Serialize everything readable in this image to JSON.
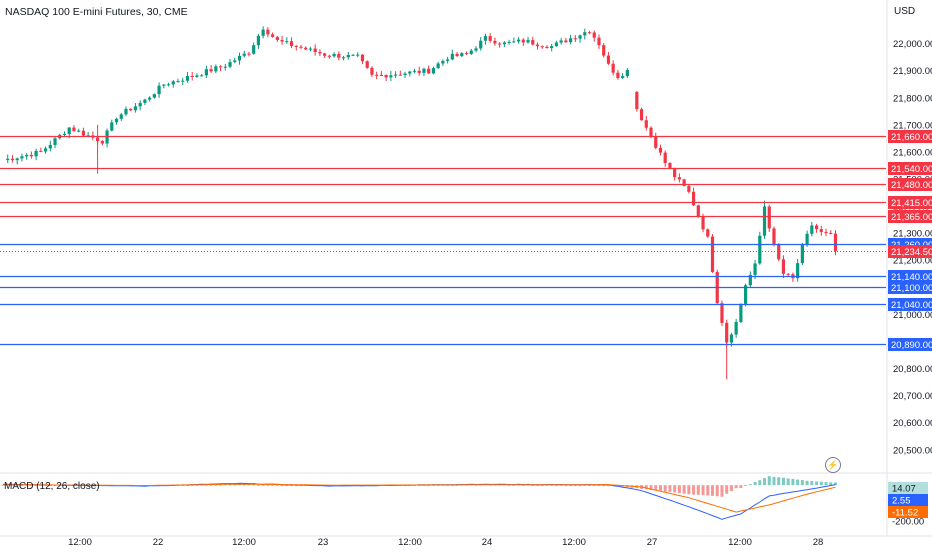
{
  "header": {
    "title": "NASDAQ 100 E-mini Futures, 30, CME",
    "currency": "USD"
  },
  "icons": {
    "alert": "lightning-bolt-icon"
  },
  "colors": {
    "up": "#089981",
    "down": "#f23645",
    "resistance": "#f23645",
    "support": "#2962ff",
    "macd": "#2962ff",
    "signal": "#ff6d00",
    "last": "#f23645"
  },
  "chart_data": [
    {
      "type": "candlestick",
      "title": "NASDAQ 100 E-mini Futures, 30, CME",
      "price_scale": {
        "min": 20430,
        "max": 22100,
        "ticks": [
          "22,000.00",
          "21,900.00",
          "21,800.00",
          "21,700.00",
          "21,600.00",
          "21,500.00",
          "21,400.00",
          "21,300.00",
          "21,200.00",
          "21,100.00",
          "21,000.00",
          "20,900.00",
          "20,800.00",
          "20,700.00",
          "20,600.00",
          "20,500.00"
        ],
        "tick_values": [
          22000,
          21900,
          21800,
          21700,
          21600,
          21500,
          21400,
          21300,
          21200,
          21100,
          21000,
          20900,
          20800,
          20700,
          20600,
          20500
        ]
      },
      "time_axis": {
        "labels": [
          "12:00",
          "22",
          "12:00",
          "23",
          "12:00",
          "24",
          "12:00",
          "27",
          "12:00",
          "28"
        ]
      },
      "anchors": [
        [
          0,
          21570
        ],
        [
          8,
          21600
        ],
        [
          14,
          21690
        ],
        [
          18,
          21660
        ],
        [
          21,
          21640
        ],
        [
          24,
          21730
        ],
        [
          30,
          21790
        ],
        [
          34,
          21850
        ],
        [
          40,
          21880
        ],
        [
          47,
          21920
        ],
        [
          52,
          21970
        ],
        [
          55,
          22060
        ],
        [
          58,
          22010
        ],
        [
          62,
          21990
        ],
        [
          68,
          21960
        ],
        [
          75,
          21950
        ],
        [
          78,
          21880
        ],
        [
          84,
          21890
        ],
        [
          90,
          21900
        ],
        [
          94,
          21950
        ],
        [
          98,
          21960
        ],
        [
          102,
          22020
        ],
        [
          106,
          22000
        ],
        [
          110,
          22010
        ],
        [
          116,
          21990
        ],
        [
          120,
          22020
        ],
        [
          124,
          22050
        ],
        [
          126,
          22000
        ],
        [
          128,
          21920
        ],
        [
          130,
          21880
        ],
        [
          132,
          21900
        ],
        [
          134,
          21760
        ],
        [
          136,
          21690
        ],
        [
          140,
          21560
        ],
        [
          142,
          21510
        ],
        [
          145,
          21450
        ],
        [
          149,
          21280
        ],
        [
          151,
          21050
        ],
        [
          153,
          20900
        ],
        [
          155,
          20970
        ],
        [
          157,
          21110
        ],
        [
          159,
          21180
        ],
        [
          161,
          21400
        ],
        [
          163,
          21250
        ],
        [
          165,
          21150
        ],
        [
          167,
          21130
        ],
        [
          169,
          21250
        ],
        [
          171,
          21330
        ],
        [
          173,
          21300
        ],
        [
          175,
          21290
        ],
        [
          176,
          21235
        ]
      ],
      "last_price": "21,234.50",
      "levels": [
        {
          "value": 21660,
          "label": "21,660.00",
          "kind": "resistance"
        },
        {
          "value": 21540,
          "label": "21,540.00",
          "kind": "resistance"
        },
        {
          "value": 21480,
          "label": "21,480.00",
          "kind": "resistance"
        },
        {
          "value": 21415,
          "label": "21,415.00",
          "kind": "resistance"
        },
        {
          "value": 21365,
          "label": "21,365.00",
          "kind": "resistance"
        },
        {
          "value": 21260,
          "label": "21,260.00",
          "kind": "support"
        },
        {
          "value": 21140,
          "label": "21,140.00",
          "kind": "support"
        },
        {
          "value": 21100,
          "label": "21,100.00",
          "kind": "support"
        },
        {
          "value": 21040,
          "label": "21,040.00",
          "kind": "support"
        },
        {
          "value": 20890,
          "label": "20,890.00",
          "kind": "support"
        }
      ]
    },
    {
      "type": "macd",
      "title": "MACD (12, 26, close)",
      "values": {
        "histogram": "14.07",
        "macd": "2.55",
        "signal": "-11.52"
      },
      "tick_label": "-200.00",
      "tick_value": -200,
      "range": [
        -250,
        40
      ],
      "macd_anchors": [
        [
          0,
          5
        ],
        [
          30,
          -5
        ],
        [
          50,
          10
        ],
        [
          70,
          -5
        ],
        [
          100,
          5
        ],
        [
          128,
          2
        ],
        [
          135,
          -30
        ],
        [
          145,
          -120
        ],
        [
          152,
          -190
        ],
        [
          156,
          -160
        ],
        [
          162,
          -60
        ],
        [
          170,
          -25
        ],
        [
          176,
          2.55
        ]
      ],
      "signal_anchors": [
        [
          0,
          3
        ],
        [
          30,
          -2
        ],
        [
          50,
          6
        ],
        [
          70,
          0
        ],
        [
          100,
          2
        ],
        [
          128,
          3
        ],
        [
          135,
          -10
        ],
        [
          145,
          -70
        ],
        [
          155,
          -150
        ],
        [
          162,
          -110
        ],
        [
          170,
          -50
        ],
        [
          176,
          -11.52
        ]
      ]
    }
  ]
}
